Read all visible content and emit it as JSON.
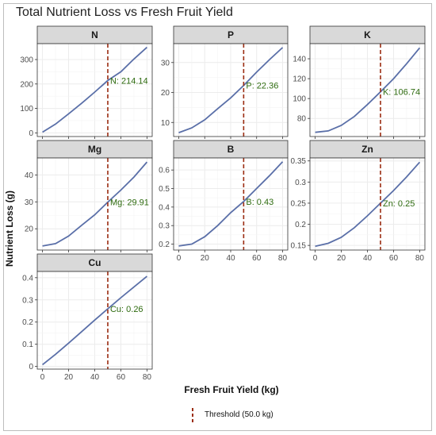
{
  "title": "Total Nutrient Loss vs Fresh Fruit Yield",
  "xlabel": "Fresh Fruit Yield (kg)",
  "ylabel": "Nutrient Loss (g)",
  "legend": {
    "label": "Threshold (50.0 kg)"
  },
  "colors": {
    "line": "#5a6fa8",
    "threshold": "#9b2c11",
    "annotation": "#2e6b0f",
    "strip": "#d9d9d9",
    "grid": "#ececec"
  },
  "chart_data": [
    {
      "type": "line",
      "panel": "N",
      "x": [
        0,
        10,
        20,
        30,
        40,
        50,
        60,
        70,
        80
      ],
      "y": [
        3,
        36,
        78,
        121,
        167,
        214.14,
        250,
        302,
        350
      ],
      "ylim": [
        -15,
        365
      ],
      "yticks": [
        0,
        100,
        200,
        300
      ],
      "xticks": [
        0,
        20,
        40,
        60,
        80
      ],
      "threshold": 50,
      "annotation": "N: 214.14"
    },
    {
      "type": "line",
      "panel": "P",
      "x": [
        0,
        10,
        20,
        30,
        40,
        50,
        60,
        70,
        80
      ],
      "y": [
        6.6,
        8.2,
        10.9,
        14.6,
        18.2,
        22.36,
        26.8,
        31,
        35
      ],
      "ylim": [
        5.3,
        36.3
      ],
      "yticks": [
        10,
        20,
        30
      ],
      "xticks": [
        0,
        20,
        40,
        60,
        80
      ],
      "threshold": 50,
      "annotation": "P: 22.36"
    },
    {
      "type": "line",
      "panel": "K",
      "x": [
        0,
        10,
        20,
        30,
        40,
        50,
        60,
        70,
        80
      ],
      "y": [
        66,
        67.5,
        73,
        82,
        94,
        106.74,
        120,
        135,
        151
      ],
      "ylim": [
        61.8,
        155.2
      ],
      "yticks": [
        80,
        100,
        120,
        140
      ],
      "xticks": [
        0,
        20,
        40,
        60,
        80
      ],
      "threshold": 50,
      "annotation": "K: 106.74"
    },
    {
      "type": "line",
      "panel": "Mg",
      "x": [
        0,
        10,
        20,
        30,
        40,
        50,
        60,
        70,
        80
      ],
      "y": [
        13.6,
        14.5,
        17.3,
        21.3,
        25.2,
        29.91,
        34.4,
        39.2,
        44.8
      ],
      "ylim": [
        12.1,
        46.3
      ],
      "yticks": [
        20,
        30,
        40
      ],
      "xticks": [
        0,
        20,
        40,
        60,
        80
      ],
      "threshold": 50,
      "annotation": "Mg: 29.91"
    },
    {
      "type": "line",
      "panel": "B",
      "x": [
        0,
        10,
        20,
        30,
        40,
        50,
        60,
        70,
        80
      ],
      "y": [
        0.19,
        0.2,
        0.24,
        0.3,
        0.37,
        0.43,
        0.5,
        0.57,
        0.645
      ],
      "ylim": [
        0.168,
        0.665
      ],
      "yticks": [
        0.2,
        0.3,
        0.4,
        0.5,
        0.6
      ],
      "xticks": [
        0,
        20,
        40,
        60,
        80
      ],
      "threshold": 50,
      "annotation": "B: 0.43"
    },
    {
      "type": "line",
      "panel": "Zn",
      "x": [
        0,
        10,
        20,
        30,
        40,
        50,
        60,
        70,
        80
      ],
      "y": [
        0.148,
        0.155,
        0.169,
        0.192,
        0.22,
        0.25,
        0.28,
        0.312,
        0.347
      ],
      "ylim": [
        0.139,
        0.357
      ],
      "yticks": [
        0.15,
        0.2,
        0.25,
        0.3,
        0.35
      ],
      "xticks": [
        0,
        20,
        40,
        60,
        80
      ],
      "threshold": 50,
      "annotation": "Zn: 0.25"
    },
    {
      "type": "line",
      "panel": "Cu",
      "x": [
        0,
        10,
        20,
        30,
        40,
        50,
        60,
        70,
        80
      ],
      "y": [
        0.008,
        0.055,
        0.105,
        0.157,
        0.209,
        0.26,
        0.31,
        0.358,
        0.406
      ],
      "ylim": [
        -0.012,
        0.428
      ],
      "yticks": [
        0,
        0.1,
        0.2,
        0.3,
        0.4
      ],
      "xticks": [
        0,
        20,
        40,
        60,
        80
      ],
      "threshold": 50,
      "annotation": "Cu: 0.26"
    }
  ]
}
